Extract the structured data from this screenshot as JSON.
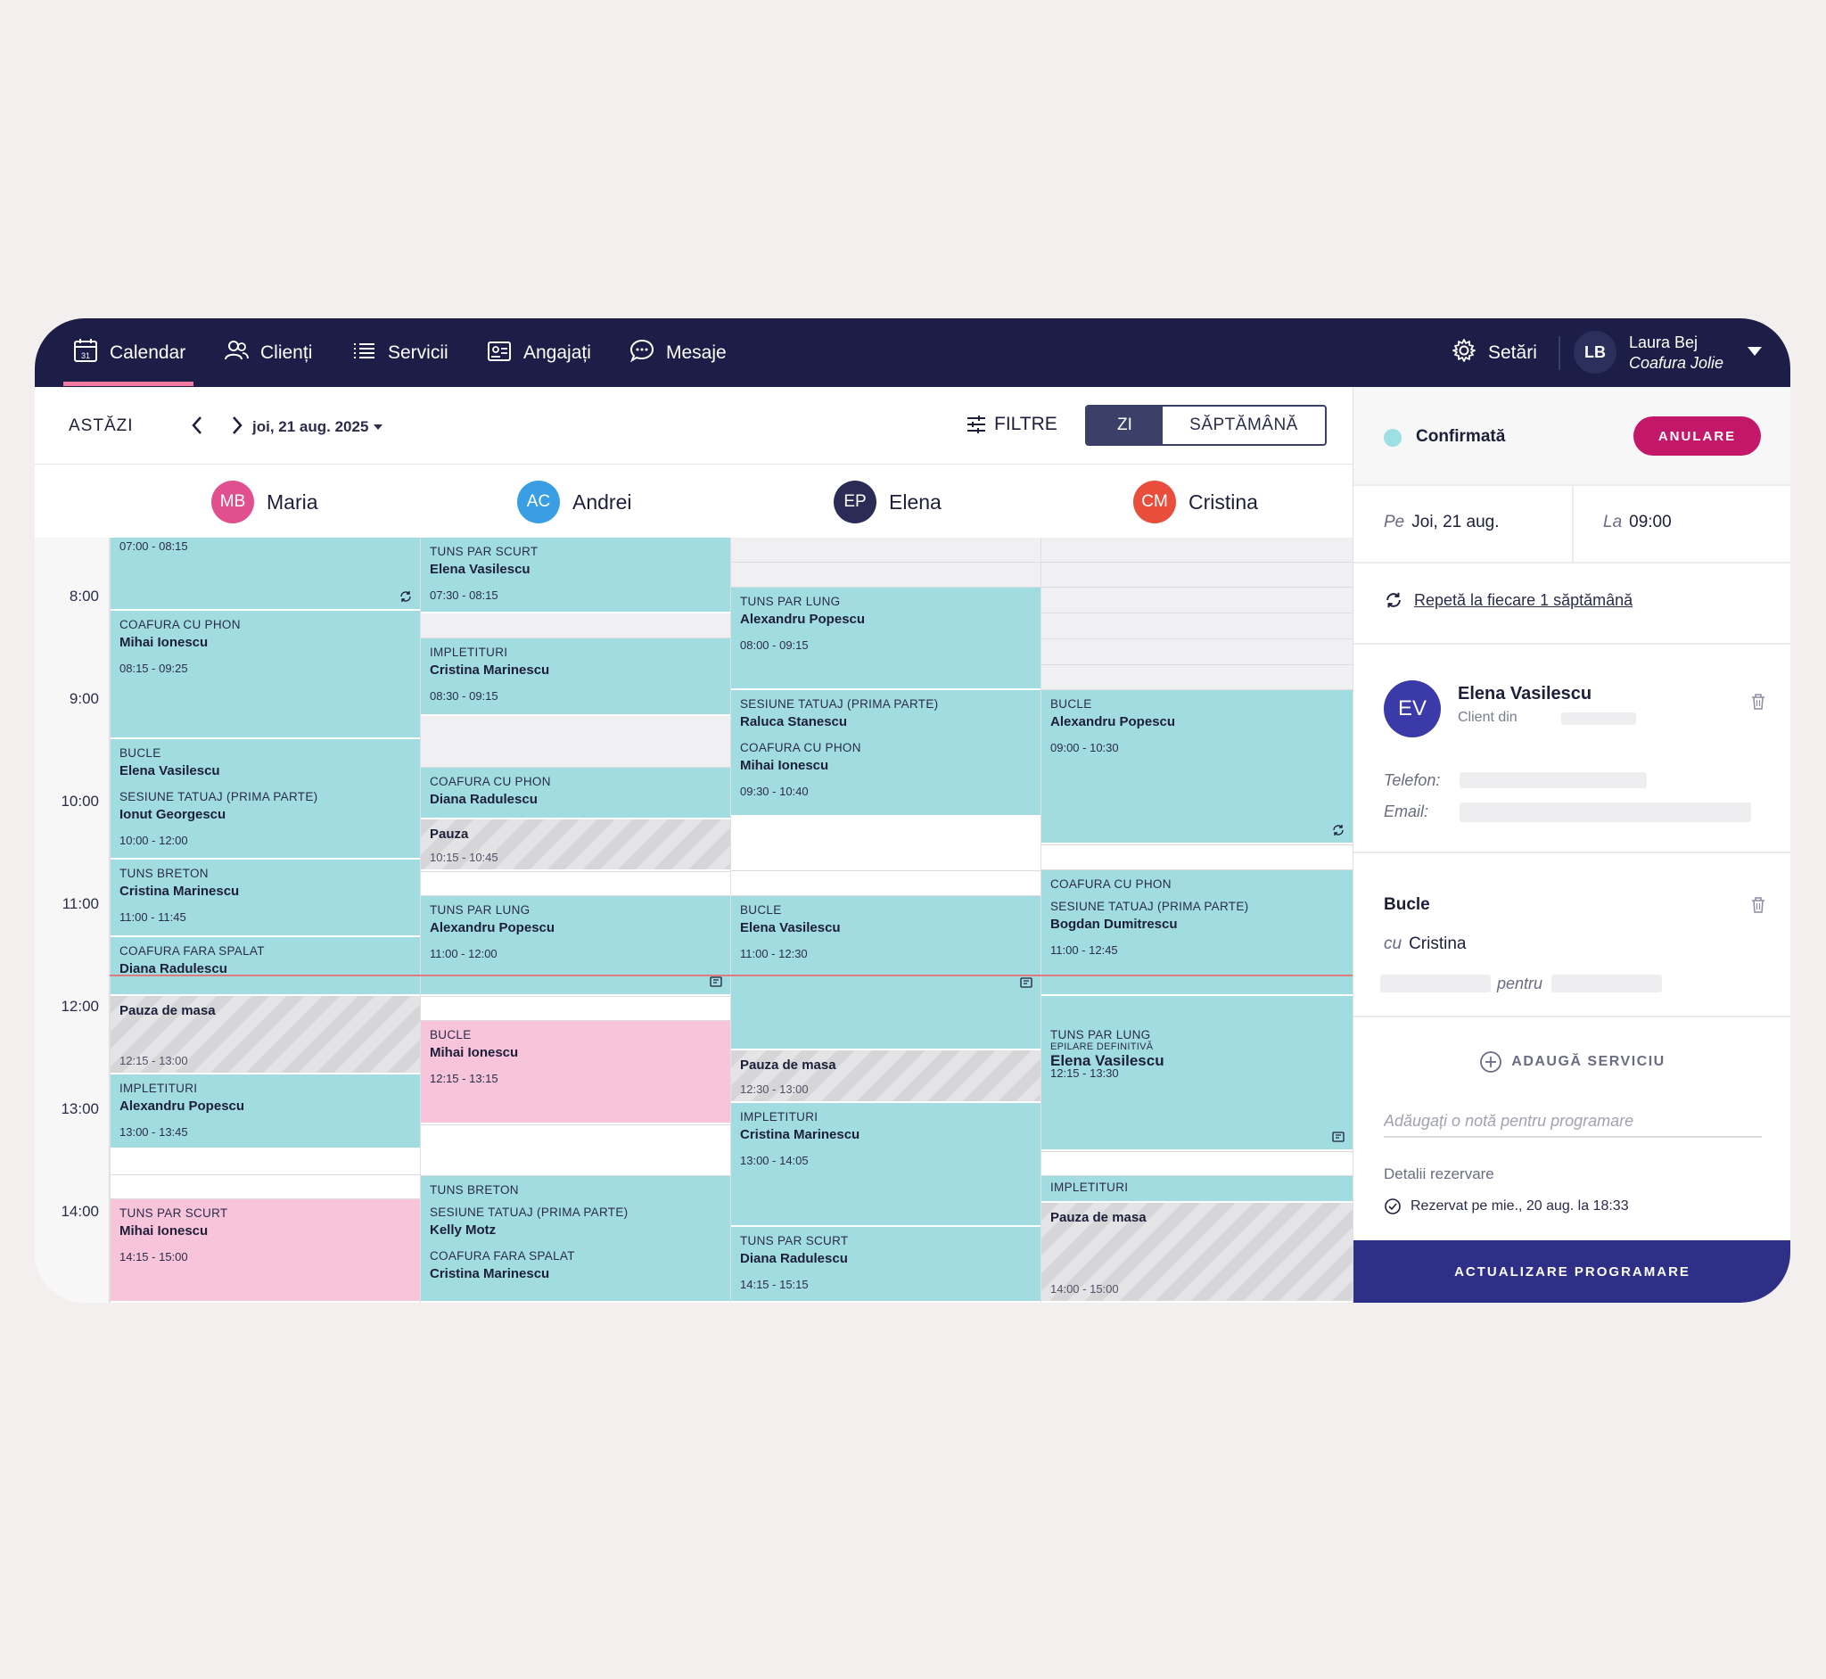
{
  "nav": {
    "items": [
      {
        "label": "Calendar",
        "icon": "calendar-icon"
      },
      {
        "label": "Clienți",
        "icon": "users-icon"
      },
      {
        "label": "Servicii",
        "icon": "list-icon"
      },
      {
        "label": "Angajați",
        "icon": "id-card-icon"
      },
      {
        "label": "Mesaje",
        "icon": "chat-icon"
      }
    ],
    "settings": "Setări",
    "user": {
      "initials": "LB",
      "name": "Laura Bej",
      "salon": "Coafura Jolie"
    }
  },
  "toolbar": {
    "today": "ASTĂZI",
    "date": "joi, 21 aug. 2025",
    "filters": "FILTRE",
    "view_day": "ZI",
    "view_week": "SĂPTĂMÂNĂ"
  },
  "staff": [
    {
      "initials": "MB",
      "name": "Maria",
      "color": "#e0508f"
    },
    {
      "initials": "AC",
      "name": "Andrei",
      "color": "#3a9ee4"
    },
    {
      "initials": "EP",
      "name": "Elena",
      "color": "#2a2c55"
    },
    {
      "initials": "CM",
      "name": "Cristina",
      "color": "#e94e3c"
    }
  ],
  "times": [
    "8:00",
    "9:00",
    "10:00",
    "11:00",
    "12:00",
    "13:00",
    "14:00"
  ],
  "columns": [
    {
      "blocks": [
        {
          "kind": "appt",
          "color": "teal",
          "time": "07:00 - 08:15",
          "repeat": true
        },
        {
          "kind": "appt",
          "color": "teal",
          "service": "COAFURA CU PHON",
          "client": "Mihai Ionescu",
          "time": "08:15 - 09:25"
        },
        {
          "kind": "appt",
          "color": "teal",
          "service": "BUCLE",
          "client": "Elena Vasilescu",
          "service2": "SESIUNE TATUAJ (PRIMA PARTE)",
          "client2": "Ionut Georgescu",
          "time": "10:00 - 12:00"
        },
        {
          "kind": "appt",
          "color": "teal",
          "service": "TUNS BRETON",
          "client": "Cristina Marinescu",
          "time": "11:00 - 11:45"
        },
        {
          "kind": "appt",
          "color": "teal",
          "service": "COAFURA FARA SPALAT",
          "client": "Diana Radulescu"
        },
        {
          "kind": "break",
          "title": "Pauza de masa",
          "time": "12:15 - 13:00"
        },
        {
          "kind": "appt",
          "color": "teal",
          "service": "IMPLETITURI",
          "client": "Alexandru Popescu",
          "time": "13:00 - 13:45"
        },
        {
          "kind": "appt",
          "color": "pink",
          "service": "TUNS PAR SCURT",
          "client": "Mihai Ionescu",
          "time": "14:15 - 15:00"
        }
      ]
    },
    {
      "blocks": [
        {
          "kind": "appt",
          "color": "teal",
          "service": "TUNS PAR SCURT",
          "client": "Elena Vasilescu",
          "time": "07:30 - 08:15"
        },
        {
          "kind": "appt",
          "color": "teal",
          "service": "IMPLETITURI",
          "client": "Cristina Marinescu",
          "time": "08:30 - 09:15"
        },
        {
          "kind": "appt",
          "color": "teal",
          "service": "COAFURA CU PHON",
          "client": "Diana Radulescu"
        },
        {
          "kind": "break",
          "title": "Pauza",
          "time": "10:15 - 10:45"
        },
        {
          "kind": "appt",
          "color": "teal",
          "service": "TUNS PAR LUNG",
          "client": "Alexandru Popescu",
          "time": "11:00 - 12:00",
          "note": true
        },
        {
          "kind": "appt",
          "color": "pink",
          "service": "BUCLE",
          "client": "Mihai Ionescu",
          "time": "12:15 - 13:15"
        },
        {
          "kind": "appt",
          "color": "teal",
          "service": "TUNS BRETON",
          "service2": "SESIUNE TATUAJ (PRIMA PARTE)",
          "client2": "Kelly Motz",
          "service3": "COAFURA FARA SPALAT",
          "client3": "Cristina Marinescu"
        }
      ]
    },
    {
      "blocks": [
        {
          "kind": "appt",
          "color": "teal",
          "service": "TUNS PAR LUNG",
          "client": "Alexandru Popescu",
          "time": "08:00 - 09:15"
        },
        {
          "kind": "appt",
          "color": "teal",
          "service": "SESIUNE TATUAJ (PRIMA PARTE)",
          "client": "Raluca Stanescu",
          "service2": "COAFURA CU PHON",
          "client2": "Mihai Ionescu",
          "time": "09:30 - 10:40"
        },
        {
          "kind": "appt",
          "color": "teal",
          "service": "BUCLE",
          "client": "Elena Vasilescu",
          "time": "11:00 - 12:30",
          "note": true
        },
        {
          "kind": "break",
          "title": "Pauza de masa",
          "time": "12:30 - 13:00"
        },
        {
          "kind": "appt",
          "color": "teal",
          "service": "IMPLETITURI",
          "client": "Cristina Marinescu",
          "time": "13:00 - 14:05"
        },
        {
          "kind": "appt",
          "color": "teal",
          "service": "TUNS PAR SCURT",
          "client": "Diana Radulescu",
          "time": "14:15 - 15:15"
        }
      ]
    },
    {
      "blocks": [
        {
          "kind": "appt",
          "color": "teal",
          "service": "BUCLE",
          "client": "Alexandru Popescu",
          "time": "09:00 - 10:30",
          "repeat": true
        },
        {
          "kind": "appt",
          "color": "teal",
          "service": "COAFURA CU PHON",
          "service2": "SESIUNE TATUAJ (PRIMA PARTE)",
          "client2": "Bogdan Dumitrescu",
          "time": "11:00 - 12:45"
        },
        {
          "kind": "appt",
          "color": "teal",
          "service": "TUNS PAR LUNG",
          "service2": "EPILARE DEFINITIVĂ",
          "client": "Elena Vasilescu",
          "time": "12:15 - 13:30",
          "note": true
        },
        {
          "kind": "appt",
          "color": "teal",
          "service": "IMPLETITURI"
        },
        {
          "kind": "break",
          "title": "Pauza de masa",
          "time": "14:00 - 15:00"
        }
      ]
    }
  ],
  "panel": {
    "status": "Confirmată",
    "status_color": "#9ddfe3",
    "cancel": "ANULARE",
    "date_label": "Pe",
    "date_value": "Joi, 21 aug.",
    "time_label": "La",
    "time_value": "09:00",
    "repeat": "Repetă la fiecare 1 săptămână",
    "client": {
      "initials": "EV",
      "name": "Elena Vasilescu",
      "from": "Client din"
    },
    "phone_label": "Telefon:",
    "email_label": "Email:",
    "service": {
      "name": "Bucle",
      "with_label": "cu",
      "with": "Cristina",
      "for_label": "pentru"
    },
    "add_service": "ADAUGĂ SERVICIU",
    "note_placeholder": "Adăugați o notă pentru programare",
    "details_title": "Detalii rezervare",
    "booked": "Rezervat pe mie., 20 aug. la 18:33",
    "update": "ACTUALIZARE PROGRAMARE"
  }
}
